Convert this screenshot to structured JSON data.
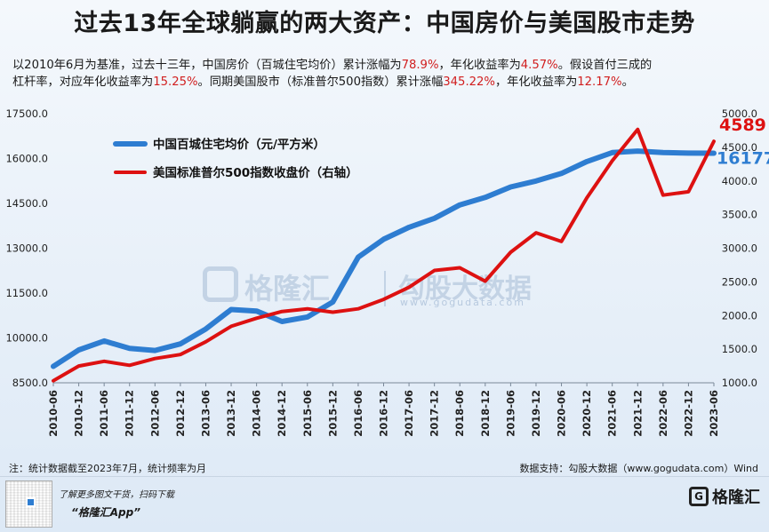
{
  "title": "过去13年全球躺赢的两大资产：中国房价与美国股市走势",
  "subtitle": {
    "line1_a": "以2010年6月为基准，过去十三年，中国房价（百城住宅均价）累计涨幅为",
    "line1_b": "78.9%",
    "line1_c": "，年化收益率为",
    "line1_d": "4.57%",
    "line1_e": "。假设首付三成的",
    "line2_a": "杠杆率，对应年化收益率为",
    "line2_b": "15.25%",
    "line2_c": "。同期美国股市（标准普尔500指数）累计涨幅",
    "line2_d": "345.22%",
    "line2_e": "，年化收益率为",
    "line2_f": "12.17%",
    "line2_g": "。"
  },
  "watermark": {
    "brand_cn": "格隆汇",
    "brand2": "勾股大数据",
    "url": "www.gogudata.com"
  },
  "footer": {
    "note": "注：统计数据截至2023年7月，统计频率为月",
    "source": "数据支持：勾股大数据（www.gogudata.com）Wind",
    "promo1": "了解更多图文干货，扫码下载",
    "promo2": "“格隆汇App”",
    "logo_mark": "G",
    "logo_text": "格隆汇"
  },
  "colors": {
    "house": "#2e7dd1",
    "spx": "#dd1111",
    "accent_red": "#d11f1f"
  },
  "chart_data": {
    "type": "line",
    "title": "",
    "x": [
      "2010-06",
      "2010-12",
      "2011-06",
      "2011-12",
      "2012-06",
      "2012-12",
      "2013-06",
      "2013-12",
      "2014-06",
      "2014-12",
      "2015-06",
      "2015-12",
      "2016-06",
      "2016-12",
      "2017-06",
      "2017-12",
      "2018-06",
      "2018-12",
      "2019-06",
      "2019-12",
      "2020-06",
      "2020-12",
      "2021-06",
      "2021-12",
      "2022-06",
      "2022-12",
      "2023-06"
    ],
    "y_left": {
      "ticks": [
        "8500.0",
        "10000.0",
        "11500.0",
        "13000.0",
        "14500.0",
        "16000.0",
        "17500.0"
      ],
      "range": [
        8500,
        17500
      ]
    },
    "y_right": {
      "ticks": [
        "1000.0",
        "1500.0",
        "2000.0",
        "2500.0",
        "3000.0",
        "3500.0",
        "4000.0",
        "4500.0",
        "5000.0"
      ],
      "range": [
        1000,
        5000
      ]
    },
    "series": [
      {
        "name": "中国百城住宅均价（元/平方米）",
        "axis": "left",
        "end_label": "16177",
        "values": [
          9050,
          9600,
          9900,
          9650,
          9580,
          9800,
          10300,
          10950,
          10900,
          10550,
          10700,
          11200,
          12700,
          13300,
          13700,
          14000,
          14450,
          14700,
          15050,
          15250,
          15500,
          15900,
          16200,
          16250,
          16200,
          16180,
          16177
        ]
      },
      {
        "name": "美国标准普尔500指数收盘价（右轴）",
        "axis": "right",
        "end_label": "4589",
        "values": [
          1030,
          1250,
          1320,
          1260,
          1360,
          1420,
          1610,
          1840,
          1960,
          2060,
          2100,
          2050,
          2100,
          2240,
          2420,
          2670,
          2710,
          2510,
          2940,
          3230,
          3100,
          3750,
          4300,
          4766,
          3790,
          3840,
          4589
        ]
      }
    ]
  }
}
